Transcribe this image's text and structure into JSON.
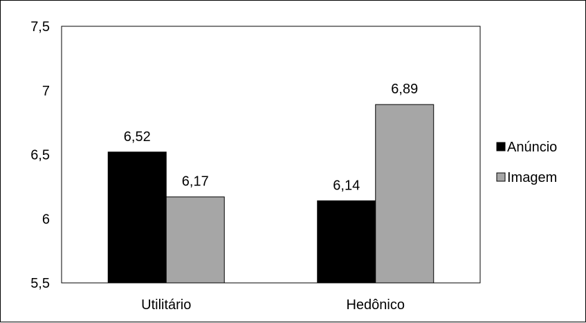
{
  "chart_data": {
    "type": "bar",
    "categories": [
      "Utilitário",
      "Hedônico"
    ],
    "series": [
      {
        "name": "Anúncio",
        "values": [
          6.52,
          6.14
        ],
        "labels": [
          "6,52",
          "6,14"
        ]
      },
      {
        "name": "Imagem",
        "values": [
          6.17,
          6.89
        ],
        "labels": [
          "6,17",
          "6,89"
        ]
      }
    ],
    "ylim": [
      5.5,
      7.5
    ],
    "yticks": [
      5.5,
      6,
      6.5,
      7,
      7.5
    ],
    "ytick_labels": [
      "5,5",
      "6",
      "6,5",
      "7",
      "7,5"
    ],
    "title": "",
    "xlabel": "",
    "ylabel": "",
    "grid": false,
    "legend_position": "right",
    "colors": {
      "Anúncio": "#000000",
      "Imagem": "#a6a6a6"
    }
  }
}
